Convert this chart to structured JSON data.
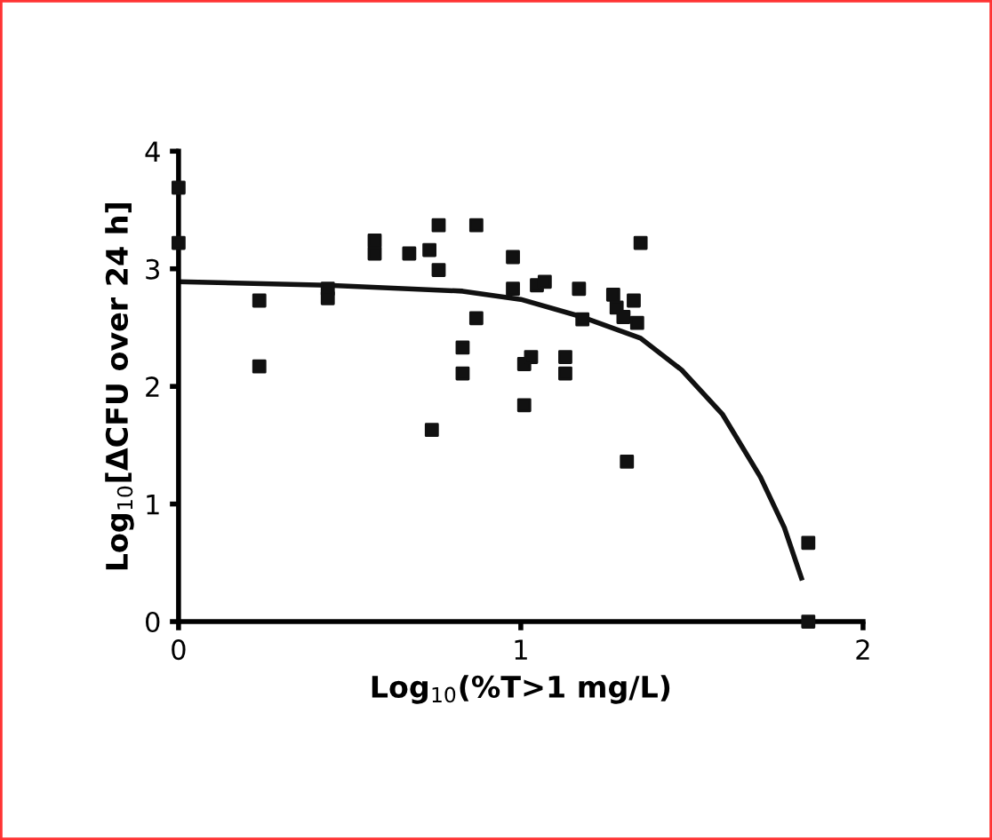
{
  "chart_data": {
    "type": "scatter",
    "xlabel": "Log$_{10}$(%T>1 mg/L)",
    "ylabel": "Log$_{10}$[ΔCFU over 24 h]",
    "xlim": [
      0,
      2
    ],
    "ylim": [
      0,
      4
    ],
    "xticks": [
      0,
      1,
      2
    ],
    "yticks": [
      0,
      1,
      2,
      3,
      4
    ],
    "grid": false,
    "marker": "square",
    "series": [
      {
        "color": "#111111",
        "x": [
          0,
          0,
          0.236,
          0.236,
          0.436,
          0.436,
          0.573,
          0.573,
          0.674,
          0.733,
          0.76,
          0.76,
          0.74,
          0.83,
          0.83,
          0.87,
          0.87,
          0.977,
          0.977,
          1.01,
          1.03,
          1.01,
          1.047,
          1.07,
          1.13,
          1.13,
          1.17,
          1.18,
          1.27,
          1.28,
          1.3,
          1.33,
          1.34,
          1.35,
          1.31,
          1.84,
          1.84
        ],
        "values": [
          3.69,
          3.22,
          2.73,
          2.17,
          2.83,
          2.75,
          3.24,
          3.13,
          3.13,
          3.16,
          3.37,
          2.99,
          1.63,
          2.33,
          2.11,
          3.37,
          2.58,
          3.1,
          2.83,
          2.19,
          2.25,
          1.84,
          2.86,
          2.89,
          2.25,
          2.11,
          2.83,
          2.57,
          2.78,
          2.67,
          2.59,
          2.73,
          2.54,
          3.22,
          1.36,
          0.67,
          0.0
        ]
      },
      {
        "type": "line",
        "color": "#111111",
        "marker": "none",
        "x": [
          0,
          0.436,
          0.83,
          1.0,
          1.18,
          1.35,
          1.47,
          1.59,
          1.7,
          1.77,
          1.82
        ],
        "values": [
          2.89,
          2.86,
          2.81,
          2.74,
          2.59,
          2.41,
          2.14,
          1.76,
          1.23,
          0.8,
          0.37
        ]
      }
    ]
  }
}
